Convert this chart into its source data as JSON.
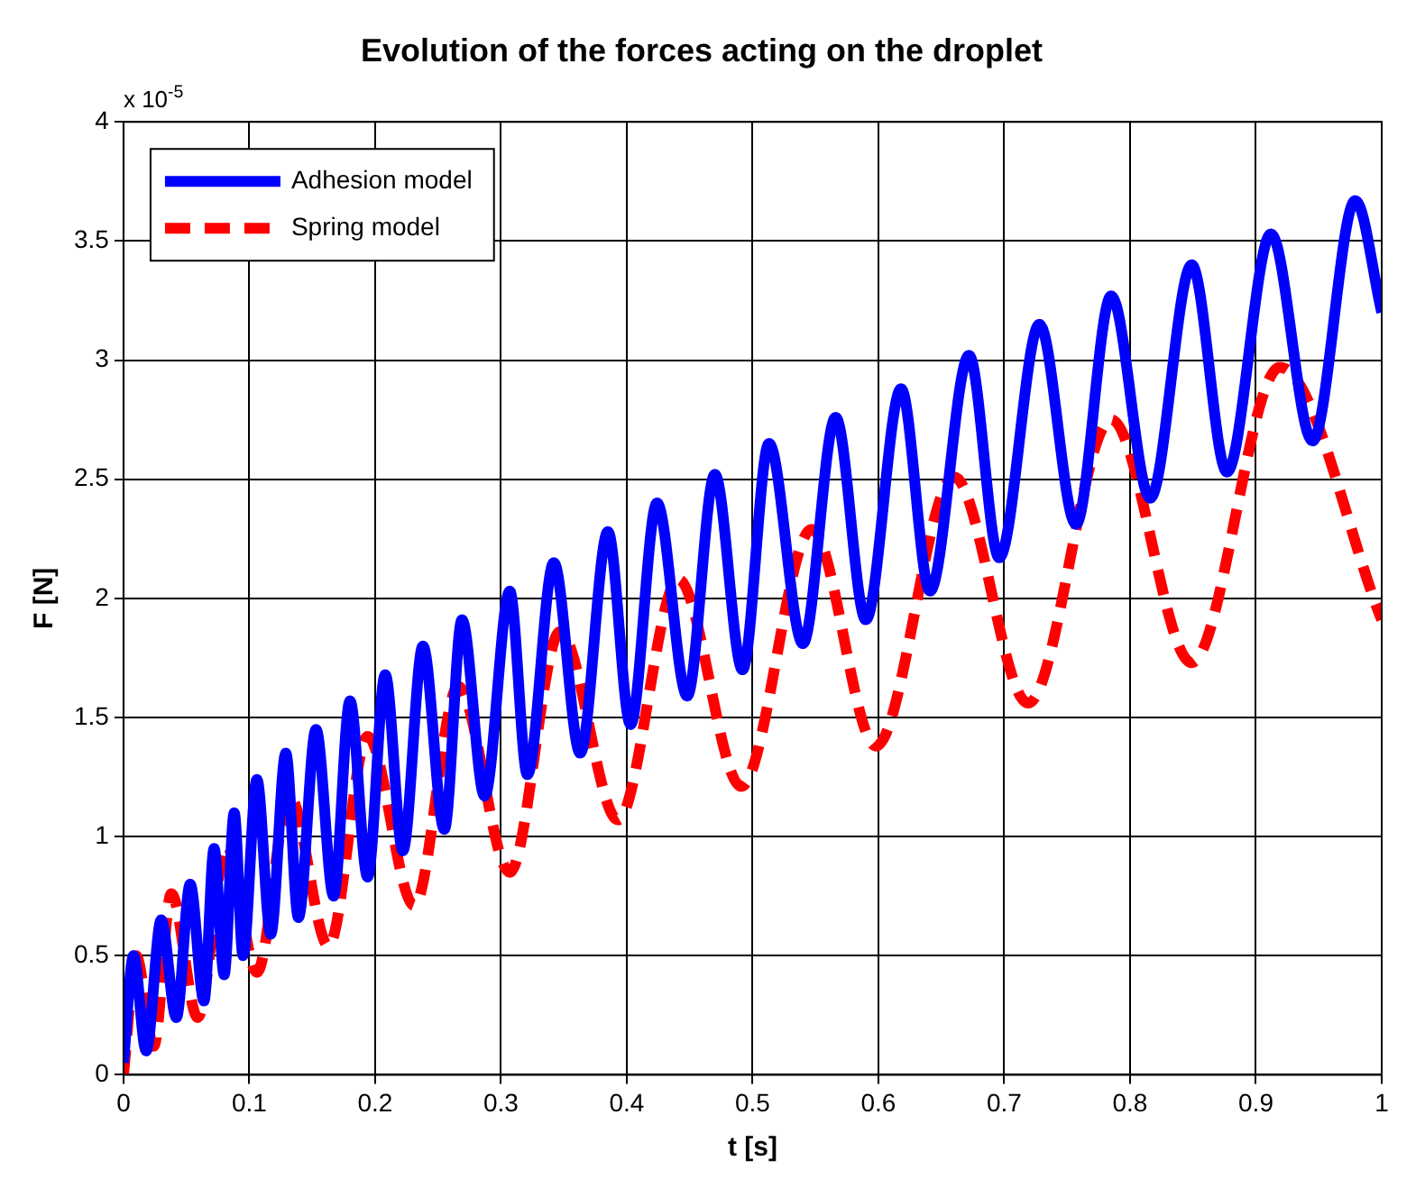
{
  "chart_data": {
    "type": "line",
    "title": "Evolution of the forces acting on the droplet",
    "xlabel": "t [s]",
    "ylabel": "F [N]",
    "annotations": [
      "x 10$^{-5}$"
    ],
    "xlim": [
      0,
      1
    ],
    "xticks": [
      0,
      0.1,
      0.2,
      0.3,
      0.4,
      0.5,
      0.6,
      0.7,
      0.8,
      0.9,
      1
    ],
    "ylim": [
      0,
      4
    ],
    "yticks": [
      0,
      0.5,
      1,
      1.5,
      2,
      2.5,
      3,
      3.5,
      4
    ],
    "grid": true,
    "legend": "top left",
    "series": [
      {
        "name": "Adhesion model",
        "color": "#0000ff",
        "line_style": "solid",
        "x": [
          0,
          0.008,
          0.018,
          0.03,
          0.042,
          0.053,
          0.064,
          0.072,
          0.08,
          0.088,
          0.095,
          0.106,
          0.117,
          0.129,
          0.139,
          0.153,
          0.167,
          0.18,
          0.194,
          0.208,
          0.222,
          0.238,
          0.255,
          0.269,
          0.287,
          0.307,
          0.321,
          0.342,
          0.363,
          0.385,
          0.403,
          0.424,
          0.448,
          0.47,
          0.492,
          0.513,
          0.54,
          0.566,
          0.59,
          0.618,
          0.641,
          0.672,
          0.696,
          0.728,
          0.757,
          0.785,
          0.816,
          0.849,
          0.877,
          0.912,
          0.945,
          0.979,
          1
        ],
        "values": [
          0.05,
          0.5,
          0.1,
          0.65,
          0.24,
          0.8,
          0.31,
          0.95,
          0.42,
          1.1,
          0.5,
          1.24,
          0.59,
          1.35,
          0.66,
          1.45,
          0.75,
          1.57,
          0.83,
          1.68,
          0.94,
          1.8,
          1.03,
          1.91,
          1.17,
          2.03,
          1.26,
          2.15,
          1.35,
          2.28,
          1.47,
          2.4,
          1.59,
          2.52,
          1.7,
          2.65,
          1.81,
          2.76,
          1.91,
          2.88,
          2.03,
          3.02,
          2.17,
          3.15,
          2.31,
          3.27,
          2.42,
          3.4,
          2.53,
          3.53,
          2.66,
          3.67,
          3.2
        ]
      },
      {
        "name": "Spring model",
        "color": "#ff0000",
        "line_style": "dashed",
        "x": [
          0,
          0.01,
          0.024,
          0.038,
          0.059,
          0.082,
          0.106,
          0.132,
          0.163,
          0.194,
          0.231,
          0.266,
          0.307,
          0.347,
          0.393,
          0.441,
          0.491,
          0.547,
          0.598,
          0.66,
          0.719,
          0.785,
          0.849,
          0.919,
          1
        ],
        "values": [
          0,
          0.5,
          0.12,
          0.76,
          0.24,
          0.96,
          0.43,
          1.17,
          0.54,
          1.42,
          0.71,
          1.63,
          0.85,
          1.86,
          1.07,
          2.08,
          1.21,
          2.29,
          1.38,
          2.51,
          1.56,
          2.75,
          1.73,
          2.97,
          1.91
        ]
      }
    ]
  }
}
